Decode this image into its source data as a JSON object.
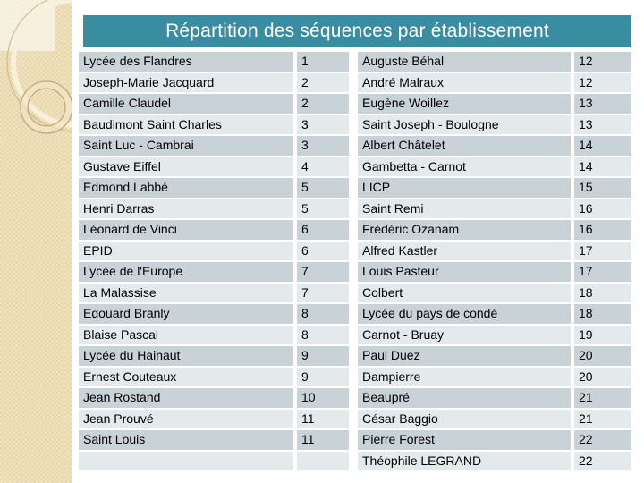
{
  "slide": {
    "title": "Répartition des séquences par établissement"
  },
  "colors": {
    "title_bg": "#3A8CA0",
    "title_text": "#FFFFFF",
    "row_dark": "#C9D3D7",
    "row_light": "#E4EAEC",
    "strip_bg": "#E7D6A9",
    "strip_ring": "#BFA97C",
    "strip_arc": "#F8F0D8"
  },
  "tables": {
    "left": {
      "rows": [
        {
          "name": "Lycée des Flandres",
          "value": "1"
        },
        {
          "name": "Joseph-Marie Jacquard",
          "value": "2"
        },
        {
          "name": "Camille Claudel",
          "value": "2"
        },
        {
          "name": "Baudimont Saint Charles",
          "value": "3"
        },
        {
          "name": "Saint Luc - Cambrai",
          "value": "3"
        },
        {
          "name": "Gustave Eiffel",
          "value": "4"
        },
        {
          "name": "Edmond Labbé",
          "value": "5"
        },
        {
          "name": "Henri Darras",
          "value": "5"
        },
        {
          "name": "Léonard de Vinci",
          "value": "6"
        },
        {
          "name": "EPID",
          "value": "6"
        },
        {
          "name": "Lycée de l'Europe",
          "value": "7"
        },
        {
          "name": "La Malassise",
          "value": "7"
        },
        {
          "name": "Edouard Branly",
          "value": "8"
        },
        {
          "name": "Blaise Pascal",
          "value": "8"
        },
        {
          "name": "Lycée du Hainaut",
          "value": "9"
        },
        {
          "name": "Ernest Couteaux",
          "value": "9"
        },
        {
          "name": "Jean Rostand",
          "value": "10"
        },
        {
          "name": "Jean Prouvé",
          "value": "11"
        },
        {
          "name": "Saint Louis",
          "value": "11"
        },
        {
          "name": "",
          "value": ""
        }
      ]
    },
    "right": {
      "rows": [
        {
          "name": "Auguste Béhal",
          "value": "12"
        },
        {
          "name": "André Malraux",
          "value": "12"
        },
        {
          "name": "Eugène Woillez",
          "value": "13"
        },
        {
          "name": "Saint Joseph - Boulogne",
          "value": "13"
        },
        {
          "name": "Albert Châtelet",
          "value": "14"
        },
        {
          "name": "Gambetta - Carnot",
          "value": "14"
        },
        {
          "name": "LICP",
          "value": "15"
        },
        {
          "name": "Saint Remi",
          "value": "16"
        },
        {
          "name": "Frédéric Ozanam",
          "value": "16"
        },
        {
          "name": "Alfred Kastler",
          "value": "17"
        },
        {
          "name": "Louis Pasteur",
          "value": "17"
        },
        {
          "name": "Colbert",
          "value": "18"
        },
        {
          "name": "Lycée du pays de condé",
          "value": "18"
        },
        {
          "name": "Carnot - Bruay",
          "value": "19"
        },
        {
          "name": "Paul Duez",
          "value": "20"
        },
        {
          "name": "Dampierre",
          "value": "20"
        },
        {
          "name": "Beaupré",
          "value": "21"
        },
        {
          "name": "César Baggio",
          "value": "21"
        },
        {
          "name": "Pierre Forest",
          "value": "22"
        },
        {
          "name": "Théophile LEGRAND",
          "value": "22"
        }
      ]
    }
  }
}
